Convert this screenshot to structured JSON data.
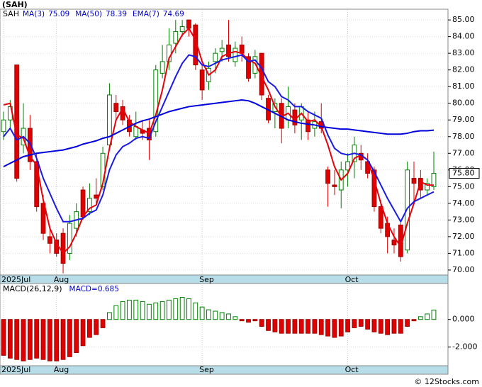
{
  "ticker_title": "(SAH)",
  "watermark": "© 12Stocks.com",
  "chart_data": [
    {
      "type": "candlestick",
      "ticker": "SAH",
      "categories": [
        "2025Jul",
        null,
        null,
        null,
        null,
        null,
        null,
        null,
        "Aug",
        null,
        null,
        null,
        null,
        null,
        null,
        null,
        null,
        null,
        null,
        null,
        null,
        null,
        null,
        null,
        null,
        null,
        null,
        null,
        null,
        null,
        "Sep",
        null,
        null,
        null,
        null,
        null,
        null,
        null,
        null,
        null,
        null,
        null,
        null,
        null,
        null,
        null,
        null,
        null,
        null,
        null,
        null,
        null,
        "Oct",
        null,
        null,
        null,
        null,
        null,
        null,
        null,
        null,
        null,
        null,
        null,
        null,
        null
      ],
      "open": [
        78.3,
        79.0,
        82.3,
        77.5,
        78.5,
        76.5,
        74.0,
        72.0,
        71.8,
        72.2,
        71.0,
        72.5,
        74.8,
        73.5,
        74.5,
        75.0,
        77.5,
        80.0,
        79.8,
        79.0,
        78.0,
        78.4,
        78.5,
        78.3,
        81.8,
        82.5,
        83.6,
        84.3,
        85.0,
        84.7,
        82.0,
        81.3,
        82.5,
        83.1,
        83.5,
        82.5,
        83.5,
        82.8,
        81.8,
        83.0,
        80.3,
        79.5,
        80.0,
        79.0,
        79.6,
        79.0,
        79.0,
        78.5,
        78.9,
        76.0,
        75.1,
        74.8,
        76.0,
        76.5,
        77.0,
        76.5,
        76.0,
        73.8,
        72.8,
        71.8,
        72.7,
        71.2,
        75.5,
        75.5,
        74.8,
        75.0
      ],
      "high": [
        79.5,
        80.2,
        82.3,
        80.0,
        79.3,
        77.0,
        74.5,
        72.5,
        72.2,
        72.5,
        73.3,
        74.0,
        75.0,
        75.2,
        75.5,
        77.4,
        81.2,
        80.5,
        80.2,
        79.3,
        79.5,
        79.0,
        79.0,
        82.3,
        83.5,
        84.5,
        85.0,
        85.0,
        85.0,
        84.8,
        82.3,
        82.5,
        83.3,
        83.8,
        85.0,
        83.7,
        84.0,
        83.0,
        83.2,
        83.0,
        80.5,
        80.3,
        80.3,
        81.0,
        80.0,
        80.0,
        79.5,
        79.5,
        80.0,
        76.2,
        76.0,
        76.5,
        77.0,
        78.0,
        77.5,
        77.0,
        76.2,
        74.2,
        73.2,
        72.5,
        72.8,
        76.5,
        76.5,
        76.0,
        75.5,
        77.1
      ],
      "low": [
        77.8,
        78.5,
        75.3,
        77.0,
        76.0,
        73.5,
        71.8,
        71.0,
        70.8,
        69.8,
        70.6,
        72.0,
        73.0,
        73.3,
        74.0,
        74.8,
        77.3,
        79.0,
        78.7,
        78.0,
        77.8,
        77.8,
        76.6,
        78.0,
        81.5,
        82.0,
        83.0,
        84.0,
        84.0,
        82.0,
        80.2,
        80.8,
        81.8,
        82.5,
        82.5,
        82.2,
        82.5,
        81.3,
        81.5,
        80.2,
        78.8,
        78.5,
        77.6,
        78.5,
        78.2,
        77.8,
        77.8,
        78.0,
        78.2,
        73.8,
        74.5,
        73.7,
        75.0,
        75.5,
        76.0,
        75.5,
        73.5,
        72.2,
        71.0,
        71.0,
        70.5,
        71.0,
        74.0,
        74.3,
        74.5,
        74.8
      ],
      "close": [
        79.0,
        79.8,
        75.5,
        78.5,
        76.5,
        73.8,
        72.2,
        71.6,
        71.0,
        70.4,
        72.8,
        73.5,
        73.2,
        74.3,
        74.3,
        77.0,
        80.5,
        79.5,
        79.0,
        78.3,
        78.6,
        78.2,
        77.8,
        82.0,
        82.5,
        83.5,
        84.3,
        84.6,
        84.5,
        82.3,
        80.8,
        82.1,
        83.0,
        83.3,
        82.8,
        83.3,
        83.0,
        81.5,
        82.8,
        80.5,
        79.0,
        80.0,
        78.5,
        79.8,
        78.7,
        79.8,
        78.3,
        78.9,
        78.5,
        75.2,
        75.0,
        76.0,
        76.5,
        77.5,
        76.6,
        75.8,
        73.8,
        72.5,
        72.0,
        71.5,
        70.8,
        76.0,
        75.2,
        74.8,
        75.2,
        75.8
      ],
      "up_color": "#008000",
      "down_color": "#e00000",
      "lines": [
        {
          "name": "MA(3)",
          "last": 75.09,
          "color": "#e8000b",
          "values": [
            79.9,
            80.0,
            78.1,
            77.9,
            76.8,
            76.3,
            74.2,
            72.5,
            71.6,
            71.0,
            71.4,
            72.2,
            73.2,
            73.7,
            73.9,
            75.2,
            77.3,
            79.0,
            79.7,
            78.9,
            78.6,
            78.4,
            78.2,
            79.3,
            80.8,
            82.7,
            83.4,
            84.1,
            84.5,
            83.8,
            82.5,
            81.7,
            82.0,
            82.8,
            83.0,
            83.1,
            83.0,
            82.6,
            82.4,
            81.6,
            80.8,
            79.8,
            79.2,
            79.4,
            79.0,
            79.4,
            78.9,
            79.0,
            78.6,
            77.5,
            76.2,
            75.4,
            75.8,
            76.7,
            76.9,
            76.6,
            75.4,
            74.0,
            72.8,
            72.0,
            71.4,
            72.8,
            74.0,
            75.3,
            75.1,
            75.09
          ]
        },
        {
          "name": "MA(50)",
          "last": 78.39,
          "color": "#0000dd",
          "values": [
            76.2,
            76.4,
            76.6,
            76.8,
            76.9,
            77.0,
            77.05,
            77.1,
            77.15,
            77.2,
            77.3,
            77.4,
            77.55,
            77.65,
            77.75,
            77.9,
            78.0,
            78.2,
            78.4,
            78.6,
            78.8,
            78.95,
            79.05,
            79.2,
            79.35,
            79.5,
            79.6,
            79.7,
            79.8,
            79.85,
            79.9,
            79.95,
            80.0,
            80.05,
            80.1,
            80.15,
            80.2,
            80.15,
            80.0,
            79.8,
            79.6,
            79.4,
            79.2,
            79.0,
            78.9,
            78.8,
            78.75,
            78.7,
            78.6,
            78.55,
            78.5,
            78.45,
            78.45,
            78.4,
            78.35,
            78.3,
            78.25,
            78.2,
            78.15,
            78.15,
            78.15,
            78.2,
            78.3,
            78.35,
            78.35,
            78.39
          ]
        },
        {
          "name": "EMA(7)",
          "last": 74.69,
          "color": "#1a1ae6",
          "values": [
            78.0,
            78.5,
            77.8,
            78.0,
            77.6,
            76.7,
            75.5,
            74.6,
            73.7,
            72.9,
            72.9,
            73.0,
            73.1,
            73.4,
            73.6,
            74.5,
            76.0,
            76.9,
            77.4,
            77.6,
            77.9,
            78.0,
            77.9,
            78.9,
            79.8,
            80.7,
            81.6,
            82.4,
            82.9,
            82.8,
            82.3,
            82.2,
            82.4,
            82.6,
            82.7,
            82.8,
            82.9,
            82.5,
            82.6,
            82.1,
            81.3,
            81.0,
            80.4,
            80.2,
            79.8,
            79.8,
            79.5,
            79.3,
            79.1,
            78.1,
            77.3,
            77.0,
            76.9,
            77.0,
            76.9,
            76.6,
            75.9,
            75.1,
            74.3,
            73.6,
            72.9,
            73.7,
            74.1,
            74.3,
            74.5,
            74.69
          ]
        }
      ],
      "last_price": {
        "value": 75.8,
        "label": "75.80"
      },
      "ylim": [
        69.7,
        85.6
      ],
      "yticks": [
        {
          "value": 70,
          "label": "70.00"
        },
        {
          "value": 71,
          "label": "71.00"
        },
        {
          "value": 72,
          "label": "72.00"
        },
        {
          "value": 73,
          "label": "73.00"
        },
        {
          "value": 74,
          "label": "74.00"
        },
        {
          "value": 75,
          "label": "75.00"
        },
        {
          "value": 76,
          "label": "76.00"
        },
        {
          "value": 77,
          "label": "77.00"
        },
        {
          "value": 78,
          "label": "78.00"
        },
        {
          "value": 79,
          "label": "79.00"
        },
        {
          "value": 80,
          "label": "80.00"
        },
        {
          "value": 81,
          "label": "81.00"
        },
        {
          "value": 82,
          "label": "82.00"
        },
        {
          "value": 83,
          "label": "83.00"
        },
        {
          "value": 84,
          "label": "84.00"
        },
        {
          "value": 85,
          "label": "85.00"
        }
      ],
      "grid": true
    },
    {
      "type": "bar",
      "title": "MACD(26,12,9)",
      "value_text": "MACD=0.685",
      "categories": [
        "2025Jul",
        null,
        null,
        null,
        null,
        null,
        null,
        null,
        "Aug",
        null,
        null,
        null,
        null,
        null,
        null,
        null,
        null,
        null,
        null,
        null,
        null,
        null,
        null,
        null,
        null,
        null,
        null,
        null,
        null,
        null,
        "Sep",
        null,
        null,
        null,
        null,
        null,
        null,
        null,
        null,
        null,
        null,
        null,
        null,
        null,
        null,
        null,
        null,
        null,
        null,
        null,
        null,
        null,
        "Oct",
        null,
        null,
        null,
        null,
        null,
        null,
        null,
        null,
        null,
        null,
        null,
        null,
        null
      ],
      "values": [
        -2.6,
        -2.8,
        -2.9,
        -3.0,
        -2.9,
        -2.8,
        -2.9,
        -3.0,
        -3.0,
        -2.9,
        -2.7,
        -2.4,
        -1.9,
        -1.3,
        -1.1,
        -0.6,
        0.5,
        1.0,
        1.3,
        1.4,
        1.4,
        1.3,
        1.1,
        1.2,
        1.3,
        1.4,
        1.5,
        1.6,
        1.5,
        1.2,
        0.9,
        0.7,
        0.6,
        0.5,
        0.4,
        0.2,
        -0.1,
        -0.2,
        -0.1,
        -0.5,
        -0.8,
        -0.9,
        -1.0,
        -1.0,
        -1.0,
        -1.0,
        -1.0,
        -1.0,
        -1.1,
        -1.2,
        -1.3,
        -1.2,
        -0.9,
        -0.6,
        -0.5,
        -0.7,
        -0.9,
        -1.0,
        -1.1,
        -1.0,
        -1.0,
        -0.5,
        -0.1,
        0.2,
        0.4,
        0.685
      ],
      "up_color": "#008000",
      "down_color": "#e00000",
      "ylim": [
        -3.3,
        2.5
      ],
      "yticks": [
        {
          "value": -2,
          "label": "-2.000"
        },
        {
          "value": 0,
          "label": "0.000"
        }
      ],
      "grid": true
    }
  ]
}
